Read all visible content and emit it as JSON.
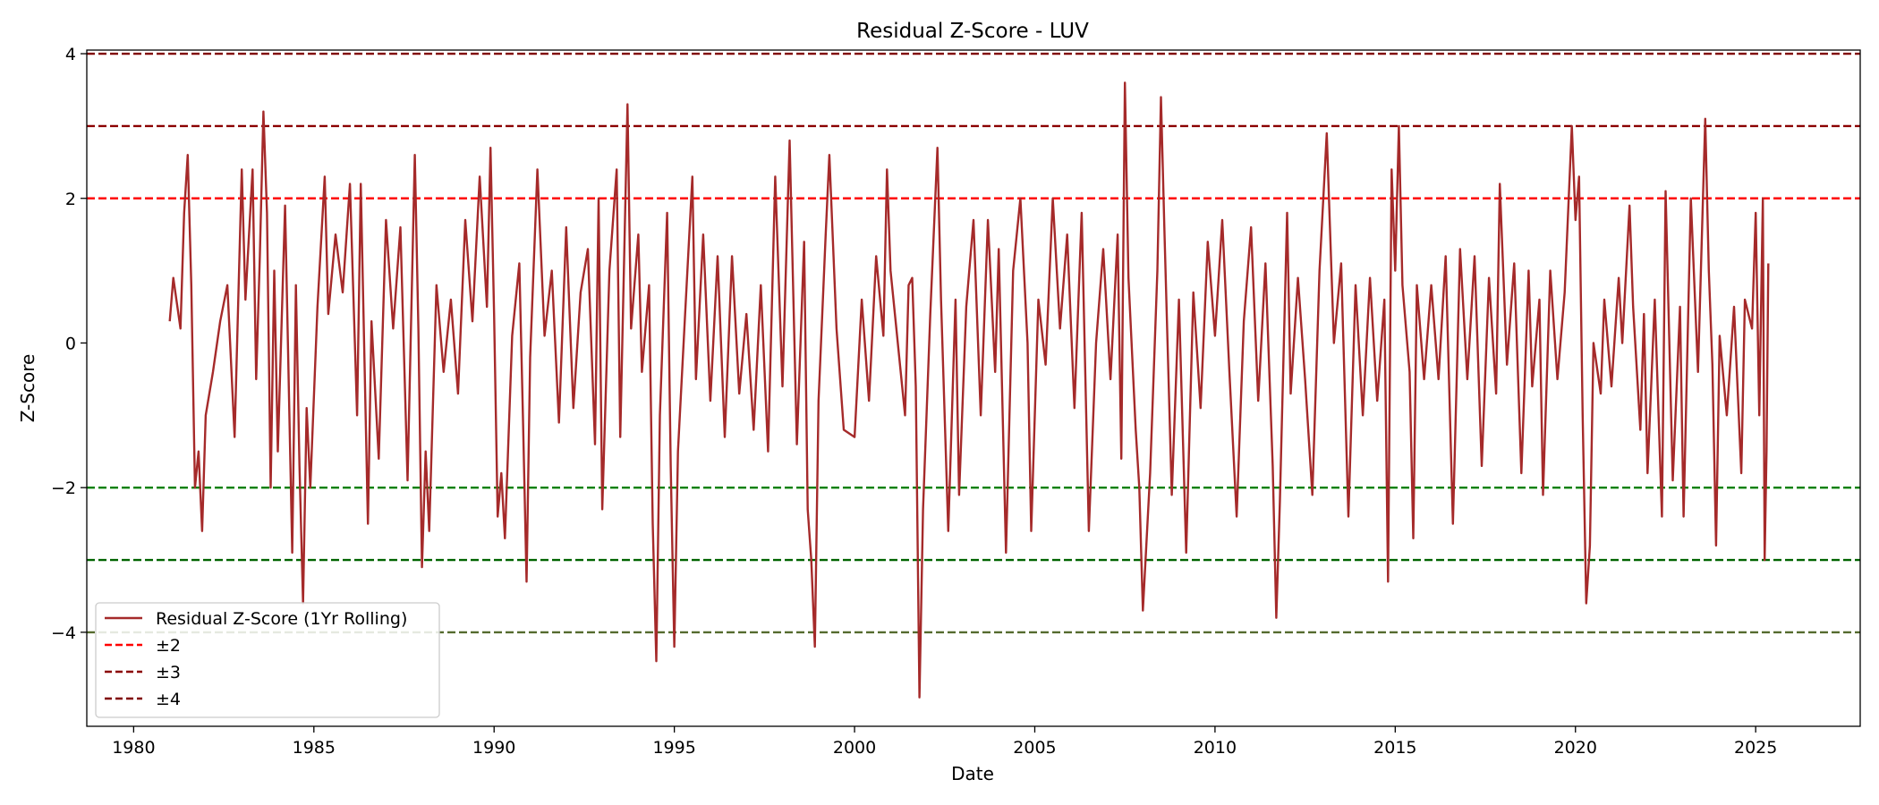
{
  "chart_data": {
    "type": "line",
    "title": "Residual Z-Score - LUV",
    "xlabel": "Date",
    "ylabel": "Z-Score",
    "xlim": [
      1978.7,
      2027.9
    ],
    "ylim": [
      -5.3,
      4.05
    ],
    "x_ticks": [
      1980,
      1985,
      1990,
      1995,
      2000,
      2005,
      2010,
      2015,
      2020,
      2025
    ],
    "x_tick_labels": [
      "1980",
      "1985",
      "1990",
      "1995",
      "2000",
      "2005",
      "2010",
      "2015",
      "2020",
      "2025"
    ],
    "y_ticks": [
      -4,
      -2,
      0,
      2,
      4
    ],
    "y_tick_labels": [
      "−4",
      "−2",
      "0",
      "2",
      "4"
    ],
    "grid": false,
    "legend_position": "lower-left",
    "legend": [
      {
        "label": "Residual Z-Score (1Yr Rolling)",
        "color": "#a52a2a",
        "style": "solid"
      },
      {
        "label": "±2",
        "color": "#ff0000",
        "style": "dashed"
      },
      {
        "label": "±3",
        "color": "#8b0000",
        "style": "dashed"
      },
      {
        "label": "±4",
        "color": "#800000",
        "style": "dashed"
      }
    ],
    "threshold_lines": [
      {
        "y": 4,
        "color": "#800000"
      },
      {
        "y": 3,
        "color": "#8b0000"
      },
      {
        "y": 2,
        "color": "#ff0000"
      },
      {
        "y": -2,
        "color": "#008000"
      },
      {
        "y": -3,
        "color": "#006400"
      },
      {
        "y": -4,
        "color": "#556b2f"
      }
    ],
    "series": [
      {
        "name": "Residual Z-Score (1Yr Rolling)",
        "color": "#a52a2a",
        "points": [
          [
            1981.0,
            0.3
          ],
          [
            1981.1,
            0.9
          ],
          [
            1981.3,
            0.2
          ],
          [
            1981.4,
            1.8
          ],
          [
            1981.5,
            2.6
          ],
          [
            1981.6,
            0.8
          ],
          [
            1981.7,
            -2.0
          ],
          [
            1981.8,
            -1.5
          ],
          [
            1981.9,
            -2.6
          ],
          [
            1982.0,
            -1.0
          ],
          [
            1982.2,
            -0.4
          ],
          [
            1982.4,
            0.3
          ],
          [
            1982.6,
            0.8
          ],
          [
            1982.8,
            -1.3
          ],
          [
            1983.0,
            2.4
          ],
          [
            1983.1,
            0.6
          ],
          [
            1983.3,
            2.4
          ],
          [
            1983.4,
            -0.5
          ],
          [
            1983.5,
            1.2
          ],
          [
            1983.6,
            3.2
          ],
          [
            1983.7,
            1.8
          ],
          [
            1983.8,
            -2.0
          ],
          [
            1983.9,
            1.0
          ],
          [
            1984.0,
            -1.5
          ],
          [
            1984.2,
            1.9
          ],
          [
            1984.4,
            -2.9
          ],
          [
            1984.5,
            0.8
          ],
          [
            1984.6,
            -1.7
          ],
          [
            1984.7,
            -3.6
          ],
          [
            1984.8,
            -0.9
          ],
          [
            1984.9,
            -2.0
          ],
          [
            1985.1,
            0.5
          ],
          [
            1985.3,
            2.3
          ],
          [
            1985.4,
            0.4
          ],
          [
            1985.6,
            1.5
          ],
          [
            1985.8,
            0.7
          ],
          [
            1986.0,
            2.2
          ],
          [
            1986.2,
            -1.0
          ],
          [
            1986.3,
            2.2
          ],
          [
            1986.5,
            -2.5
          ],
          [
            1986.6,
            0.3
          ],
          [
            1986.8,
            -1.6
          ],
          [
            1987.0,
            1.7
          ],
          [
            1987.2,
            0.2
          ],
          [
            1987.4,
            1.6
          ],
          [
            1987.6,
            -1.9
          ],
          [
            1987.8,
            2.6
          ],
          [
            1987.9,
            0.2
          ],
          [
            1988.0,
            -3.1
          ],
          [
            1988.1,
            -1.5
          ],
          [
            1988.2,
            -2.6
          ],
          [
            1988.4,
            0.8
          ],
          [
            1988.6,
            -0.4
          ],
          [
            1988.8,
            0.6
          ],
          [
            1989.0,
            -0.7
          ],
          [
            1989.2,
            1.7
          ],
          [
            1989.4,
            0.3
          ],
          [
            1989.6,
            2.3
          ],
          [
            1989.8,
            0.5
          ],
          [
            1989.9,
            2.7
          ],
          [
            1990.0,
            0.4
          ],
          [
            1990.1,
            -2.4
          ],
          [
            1990.2,
            -1.8
          ],
          [
            1990.3,
            -2.7
          ],
          [
            1990.5,
            0.1
          ],
          [
            1990.7,
            1.1
          ],
          [
            1990.8,
            -1.0
          ],
          [
            1990.9,
            -3.3
          ],
          [
            1991.0,
            -0.2
          ],
          [
            1991.2,
            2.4
          ],
          [
            1991.4,
            0.1
          ],
          [
            1991.6,
            1.0
          ],
          [
            1991.8,
            -1.1
          ],
          [
            1992.0,
            1.6
          ],
          [
            1992.2,
            -0.9
          ],
          [
            1992.4,
            0.7
          ],
          [
            1992.6,
            1.3
          ],
          [
            1992.8,
            -1.4
          ],
          [
            1992.9,
            2.0
          ],
          [
            1993.0,
            -2.3
          ],
          [
            1993.2,
            1.0
          ],
          [
            1993.4,
            2.4
          ],
          [
            1993.5,
            -1.3
          ],
          [
            1993.7,
            3.3
          ],
          [
            1993.8,
            0.2
          ],
          [
            1994.0,
            1.5
          ],
          [
            1994.1,
            -0.4
          ],
          [
            1994.3,
            0.8
          ],
          [
            1994.4,
            -2.5
          ],
          [
            1994.5,
            -4.4
          ],
          [
            1994.6,
            -1.0
          ],
          [
            1994.8,
            1.8
          ],
          [
            1994.9,
            -1.7
          ],
          [
            1995.0,
            -4.2
          ],
          [
            1995.1,
            -1.5
          ],
          [
            1995.3,
            0.4
          ],
          [
            1995.5,
            2.3
          ],
          [
            1995.6,
            -0.5
          ],
          [
            1995.8,
            1.5
          ],
          [
            1996.0,
            -0.8
          ],
          [
            1996.2,
            1.2
          ],
          [
            1996.4,
            -1.3
          ],
          [
            1996.6,
            1.2
          ],
          [
            1996.8,
            -0.7
          ],
          [
            1997.0,
            0.4
          ],
          [
            1997.2,
            -1.2
          ],
          [
            1997.4,
            0.8
          ],
          [
            1997.6,
            -1.5
          ],
          [
            1997.8,
            2.3
          ],
          [
            1998.0,
            -0.6
          ],
          [
            1998.2,
            2.8
          ],
          [
            1998.4,
            -1.4
          ],
          [
            1998.6,
            1.4
          ],
          [
            1998.7,
            -2.3
          ],
          [
            1998.8,
            -3.0
          ],
          [
            1998.9,
            -4.2
          ],
          [
            1999.0,
            -0.8
          ],
          [
            1999.2,
            1.5
          ],
          [
            1999.3,
            2.6
          ],
          [
            1999.5,
            0.2
          ],
          [
            1999.7,
            -1.2
          ],
          [
            2000.0,
            -1.3
          ],
          [
            2000.2,
            0.6
          ],
          [
            2000.4,
            -0.8
          ],
          [
            2000.6,
            1.2
          ],
          [
            2000.8,
            0.1
          ],
          [
            2000.9,
            2.4
          ],
          [
            2001.0,
            1.0
          ],
          [
            2001.2,
            0.0
          ],
          [
            2001.4,
            -1.0
          ],
          [
            2001.5,
            0.8
          ],
          [
            2001.6,
            0.9
          ],
          [
            2001.7,
            -0.6
          ],
          [
            2001.8,
            -4.9
          ],
          [
            2001.9,
            -2.3
          ],
          [
            2002.1,
            0.4
          ],
          [
            2002.3,
            2.7
          ],
          [
            2002.4,
            0.6
          ],
          [
            2002.6,
            -2.6
          ],
          [
            2002.8,
            0.6
          ],
          [
            2002.9,
            -2.1
          ],
          [
            2003.1,
            0.5
          ],
          [
            2003.3,
            1.7
          ],
          [
            2003.5,
            -1.0
          ],
          [
            2003.7,
            1.7
          ],
          [
            2003.9,
            -0.4
          ],
          [
            2004.0,
            1.3
          ],
          [
            2004.2,
            -2.9
          ],
          [
            2004.4,
            1.0
          ],
          [
            2004.6,
            2.0
          ],
          [
            2004.8,
            0.0
          ],
          [
            2004.9,
            -2.6
          ],
          [
            2005.1,
            0.6
          ],
          [
            2005.3,
            -0.3
          ],
          [
            2005.5,
            2.0
          ],
          [
            2005.7,
            0.2
          ],
          [
            2005.9,
            1.5
          ],
          [
            2006.1,
            -0.9
          ],
          [
            2006.3,
            1.8
          ],
          [
            2006.5,
            -2.6
          ],
          [
            2006.7,
            0.0
          ],
          [
            2006.9,
            1.3
          ],
          [
            2007.1,
            -0.5
          ],
          [
            2007.3,
            1.5
          ],
          [
            2007.4,
            -1.6
          ],
          [
            2007.5,
            3.6
          ],
          [
            2007.6,
            0.9
          ],
          [
            2007.8,
            -1.2
          ],
          [
            2007.9,
            -2.0
          ],
          [
            2008.0,
            -3.7
          ],
          [
            2008.2,
            -1.8
          ],
          [
            2008.4,
            1.0
          ],
          [
            2008.5,
            3.4
          ],
          [
            2008.6,
            1.5
          ],
          [
            2008.8,
            -2.1
          ],
          [
            2009.0,
            0.6
          ],
          [
            2009.2,
            -2.9
          ],
          [
            2009.4,
            0.7
          ],
          [
            2009.6,
            -0.9
          ],
          [
            2009.8,
            1.4
          ],
          [
            2010.0,
            0.1
          ],
          [
            2010.2,
            1.7
          ],
          [
            2010.4,
            -0.4
          ],
          [
            2010.6,
            -2.4
          ],
          [
            2010.8,
            0.3
          ],
          [
            2011.0,
            1.6
          ],
          [
            2011.2,
            -0.8
          ],
          [
            2011.4,
            1.1
          ],
          [
            2011.6,
            -1.7
          ],
          [
            2011.7,
            -3.8
          ],
          [
            2011.8,
            -2.2
          ],
          [
            2012.0,
            1.8
          ],
          [
            2012.1,
            -0.7
          ],
          [
            2012.3,
            0.9
          ],
          [
            2012.5,
            -0.5
          ],
          [
            2012.7,
            -2.1
          ],
          [
            2012.9,
            1.0
          ],
          [
            2013.1,
            2.9
          ],
          [
            2013.3,
            0.0
          ],
          [
            2013.5,
            1.1
          ],
          [
            2013.7,
            -2.4
          ],
          [
            2013.9,
            0.8
          ],
          [
            2014.1,
            -1.0
          ],
          [
            2014.3,
            0.9
          ],
          [
            2014.5,
            -0.8
          ],
          [
            2014.7,
            0.6
          ],
          [
            2014.8,
            -3.3
          ],
          [
            2014.9,
            2.4
          ],
          [
            2015.0,
            1.0
          ],
          [
            2015.1,
            3.0
          ],
          [
            2015.2,
            0.8
          ],
          [
            2015.4,
            -0.4
          ],
          [
            2015.5,
            -2.7
          ],
          [
            2015.6,
            0.8
          ],
          [
            2015.8,
            -0.5
          ],
          [
            2016.0,
            0.8
          ],
          [
            2016.2,
            -0.5
          ],
          [
            2016.4,
            1.2
          ],
          [
            2016.6,
            -2.5
          ],
          [
            2016.8,
            1.3
          ],
          [
            2017.0,
            -0.5
          ],
          [
            2017.2,
            1.2
          ],
          [
            2017.4,
            -1.7
          ],
          [
            2017.6,
            0.9
          ],
          [
            2017.8,
            -0.7
          ],
          [
            2017.9,
            2.2
          ],
          [
            2018.1,
            -0.3
          ],
          [
            2018.3,
            1.1
          ],
          [
            2018.5,
            -1.8
          ],
          [
            2018.7,
            1.0
          ],
          [
            2018.8,
            -0.6
          ],
          [
            2019.0,
            0.6
          ],
          [
            2019.1,
            -2.1
          ],
          [
            2019.3,
            1.0
          ],
          [
            2019.5,
            -0.5
          ],
          [
            2019.7,
            0.7
          ],
          [
            2019.9,
            3.0
          ],
          [
            2020.0,
            1.7
          ],
          [
            2020.1,
            2.3
          ],
          [
            2020.2,
            -1.0
          ],
          [
            2020.3,
            -3.6
          ],
          [
            2020.4,
            -2.8
          ],
          [
            2020.5,
            0.0
          ],
          [
            2020.7,
            -0.7
          ],
          [
            2020.8,
            0.6
          ],
          [
            2021.0,
            -0.6
          ],
          [
            2021.2,
            0.9
          ],
          [
            2021.3,
            0.0
          ],
          [
            2021.5,
            1.9
          ],
          [
            2021.6,
            0.5
          ],
          [
            2021.8,
            -1.2
          ],
          [
            2021.9,
            0.4
          ],
          [
            2022.0,
            -1.8
          ],
          [
            2022.2,
            0.6
          ],
          [
            2022.4,
            -2.4
          ],
          [
            2022.5,
            2.1
          ],
          [
            2022.7,
            -1.9
          ],
          [
            2022.9,
            0.5
          ],
          [
            2023.0,
            -2.4
          ],
          [
            2023.2,
            2.0
          ],
          [
            2023.4,
            -0.4
          ],
          [
            2023.6,
            3.1
          ],
          [
            2023.7,
            1.0
          ],
          [
            2023.8,
            -0.3
          ],
          [
            2023.9,
            -2.8
          ],
          [
            2024.0,
            0.1
          ],
          [
            2024.2,
            -1.0
          ],
          [
            2024.4,
            0.5
          ],
          [
            2024.6,
            -1.8
          ],
          [
            2024.7,
            0.6
          ],
          [
            2024.9,
            0.2
          ],
          [
            2025.0,
            1.8
          ],
          [
            2025.1,
            -1.0
          ],
          [
            2025.2,
            2.0
          ],
          [
            2025.25,
            -3.0
          ],
          [
            2025.3,
            -1.5
          ],
          [
            2025.35,
            1.1
          ]
        ]
      }
    ]
  }
}
